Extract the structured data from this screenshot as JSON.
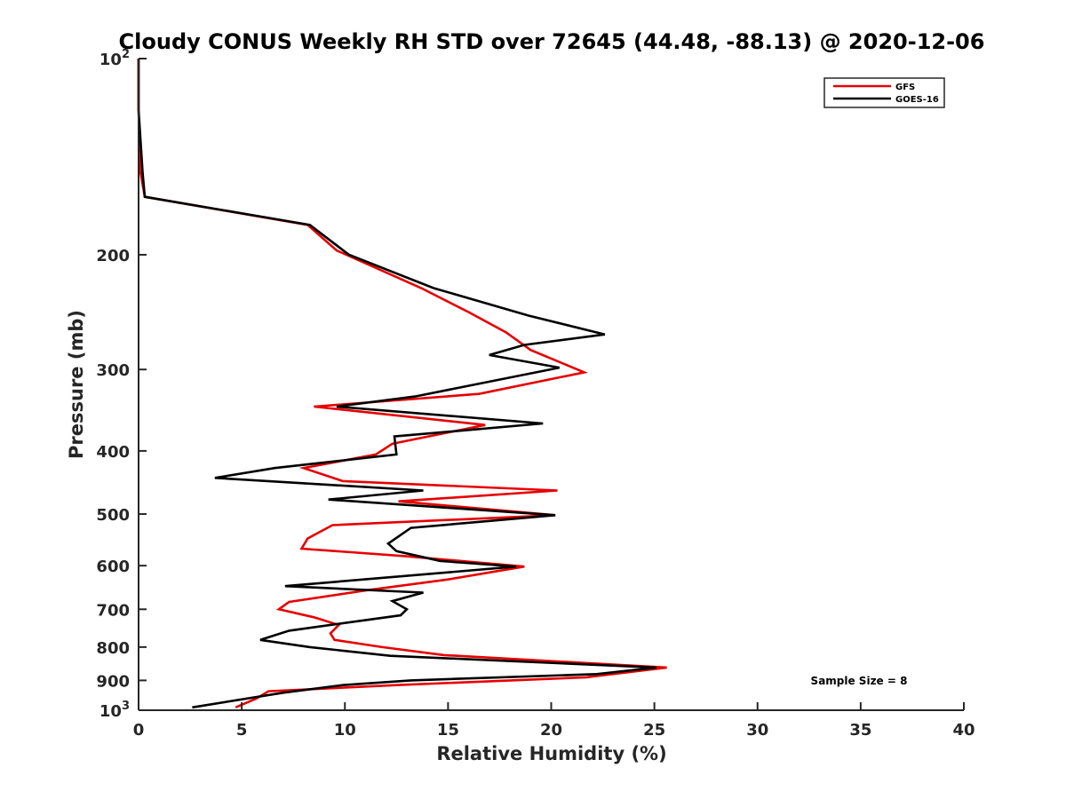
{
  "chart_data": {
    "type": "line",
    "title": "Cloudy CONUS Weekly RH STD over 72645 (44.48, -88.13) @ 2020-12-06",
    "xlabel": "Relative Humidity (%)",
    "ylabel": "Pressure (mb)",
    "xlim": [
      0,
      40
    ],
    "ylim": [
      100,
      1000
    ],
    "y_scale": "log",
    "y_reversed": true,
    "grid": false,
    "legend_position": "top-right",
    "x_ticks": [
      "0",
      "5",
      "10",
      "15",
      "20",
      "25",
      "30",
      "35",
      "40"
    ],
    "y_ticks": [
      {
        "value": 100,
        "base": "10",
        "exp": "2"
      },
      {
        "value": 200,
        "label": "200"
      },
      {
        "value": 300,
        "label": "300"
      },
      {
        "value": 400,
        "label": "400"
      },
      {
        "value": 500,
        "label": "500"
      },
      {
        "value": 600,
        "label": "600"
      },
      {
        "value": 700,
        "label": "700"
      },
      {
        "value": 800,
        "label": "800"
      },
      {
        "value": 900,
        "label": "900"
      },
      {
        "value": 1000,
        "base": "10",
        "exp": "3"
      }
    ],
    "annotation": "Sample Size = 8",
    "series": [
      {
        "name": "GFS",
        "color": "#e60000",
        "points": [
          [
            0,
            100
          ],
          [
            0,
            120
          ],
          [
            0.1,
            150
          ],
          [
            0.3,
            163
          ],
          [
            8.2,
            180
          ],
          [
            9.6,
            197
          ],
          [
            13.7,
            225
          ],
          [
            16,
            245
          ],
          [
            17.8,
            263
          ],
          [
            19,
            280
          ],
          [
            21.6,
            303
          ],
          [
            16.5,
            327
          ],
          [
            8.5,
            342
          ],
          [
            16.8,
            365
          ],
          [
            12.3,
            390
          ],
          [
            11.5,
            405
          ],
          [
            8.0,
            425
          ],
          [
            9.9,
            445
          ],
          [
            20.3,
            460
          ],
          [
            12.6,
            478
          ],
          [
            20.2,
            502
          ],
          [
            9.4,
            520
          ],
          [
            8.2,
            545
          ],
          [
            7.9,
            565
          ],
          [
            12.9,
            580
          ],
          [
            18.7,
            602
          ],
          [
            15,
            630
          ],
          [
            11,
            655
          ],
          [
            7.3,
            682
          ],
          [
            6.8,
            700
          ],
          [
            8.5,
            720
          ],
          [
            9.7,
            740
          ],
          [
            9.3,
            762
          ],
          [
            9.5,
            780
          ],
          [
            11.8,
            800
          ],
          [
            14.8,
            823
          ],
          [
            25.6,
            860
          ],
          [
            21.7,
            890
          ],
          [
            12.5,
            915
          ],
          [
            6.3,
            935
          ],
          [
            5.7,
            960
          ],
          [
            4.7,
            990
          ]
        ]
      },
      {
        "name": "GOES-16",
        "color": "#000000",
        "points": [
          [
            0,
            100
          ],
          [
            0,
            120
          ],
          [
            0.2,
            150
          ],
          [
            0.3,
            163
          ],
          [
            8.3,
            180
          ],
          [
            10.2,
            200
          ],
          [
            14.3,
            225
          ],
          [
            18.9,
            248
          ],
          [
            22.6,
            265
          ],
          [
            18.7,
            275
          ],
          [
            17,
            285
          ],
          [
            20.4,
            298
          ],
          [
            13.4,
            330
          ],
          [
            9.6,
            342
          ],
          [
            19.6,
            363
          ],
          [
            12.4,
            380
          ],
          [
            12.5,
            405
          ],
          [
            6.6,
            425
          ],
          [
            3.7,
            440
          ],
          [
            13.8,
            460
          ],
          [
            9.2,
            475
          ],
          [
            20.2,
            502
          ],
          [
            13.2,
            525
          ],
          [
            12.1,
            555
          ],
          [
            12.5,
            570
          ],
          [
            14.6,
            590
          ],
          [
            18.3,
            602
          ],
          [
            7.1,
            645
          ],
          [
            13.8,
            660
          ],
          [
            12.3,
            680
          ],
          [
            13,
            700
          ],
          [
            12.7,
            715
          ],
          [
            7.3,
            755
          ],
          [
            5.9,
            780
          ],
          [
            8.3,
            800
          ],
          [
            12.2,
            825
          ],
          [
            25.1,
            860
          ],
          [
            22.2,
            880
          ],
          [
            13.2,
            900
          ],
          [
            9.9,
            915
          ],
          [
            7,
            940
          ],
          [
            2.6,
            990
          ]
        ]
      }
    ]
  }
}
